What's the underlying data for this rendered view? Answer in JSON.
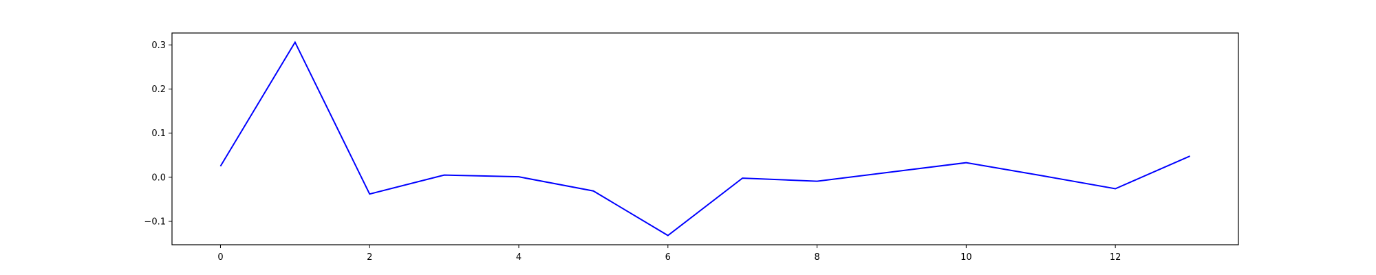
{
  "chart_data": {
    "type": "line",
    "title": "",
    "xlabel": "",
    "ylabel": "",
    "x": [
      0,
      1,
      2,
      3,
      4,
      5,
      6,
      7,
      8,
      9,
      10,
      11,
      12,
      13
    ],
    "series": [
      {
        "values": [
          0.025,
          0.306,
          -0.038,
          0.005,
          0.001,
          -0.031,
          -0.132,
          -0.002,
          -0.009,
          0.012,
          0.033,
          0.004,
          -0.026,
          0.048
        ],
        "color": "#0000ff"
      }
    ],
    "xlim": [
      -0.65,
      13.65
    ],
    "ylim": [
      -0.153,
      0.327
    ],
    "xticks": [
      0,
      2,
      4,
      6,
      8,
      10,
      12
    ],
    "xtick_labels": [
      "0",
      "2",
      "4",
      "6",
      "8",
      "10",
      "12"
    ],
    "yticks": [
      -0.1,
      0.0,
      0.1,
      0.2,
      0.3
    ],
    "ytick_labels": [
      "−0.1",
      "0.0",
      "0.1",
      "0.2",
      "0.3"
    ],
    "grid": false,
    "legend": "none"
  }
}
